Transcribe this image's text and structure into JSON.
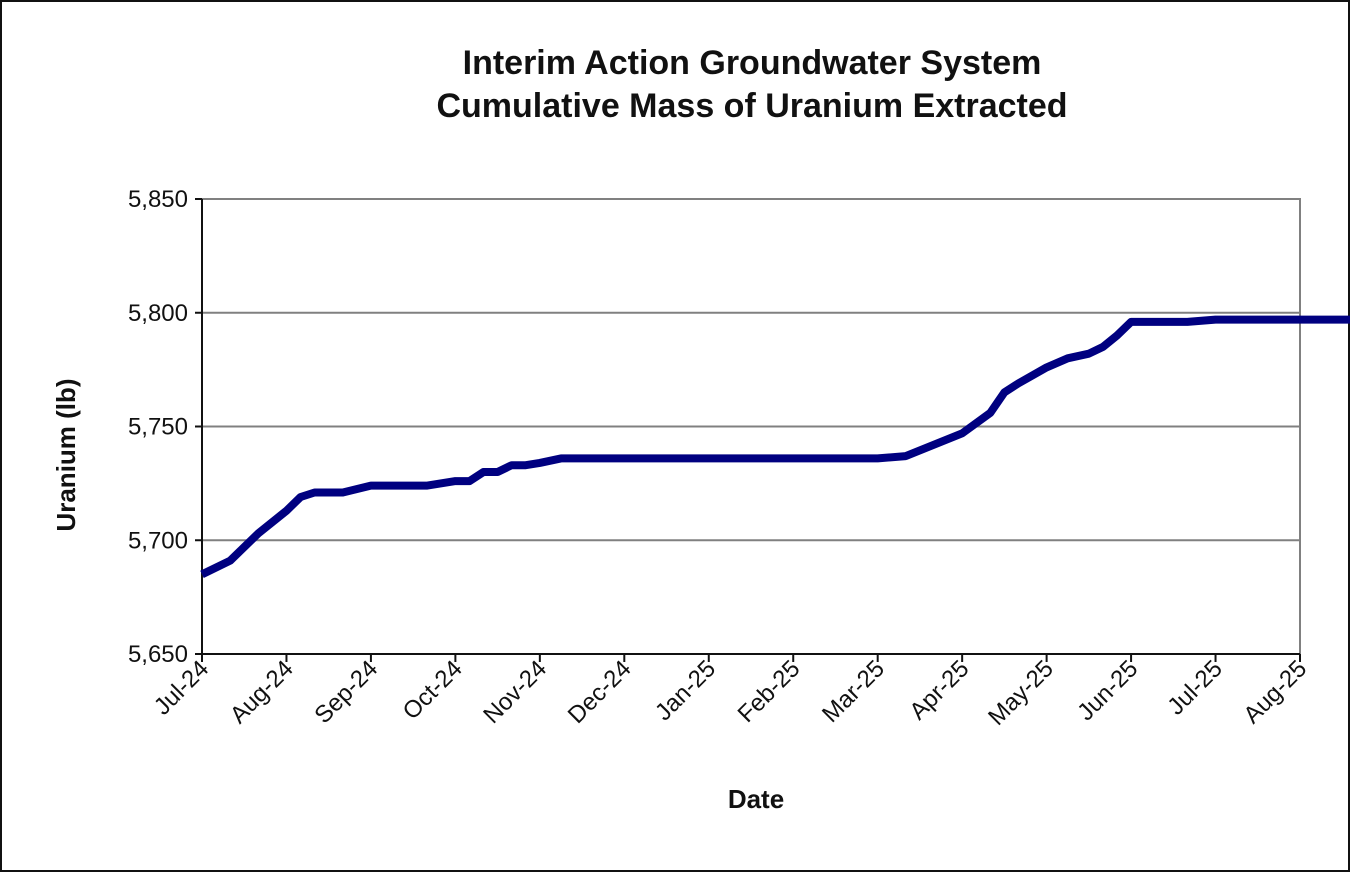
{
  "chart_data": {
    "type": "line",
    "title": "Interim  Action Groundwater System",
    "subtitle": "Cumulative Mass of Uranium Extracted",
    "xlabel": "Date",
    "ylabel": "Uranium (lb)",
    "categories": [
      "Jul-24",
      "Aug-24",
      "Sep-24",
      "Oct-24",
      "Nov-24",
      "Dec-24",
      "Jan-25",
      "Feb-25",
      "Mar-25",
      "Apr-25",
      "May-25",
      "Jun-25",
      "Jul-25",
      "Aug-25"
    ],
    "y_tick_labels": [
      "5,650",
      "5,700",
      "5,750",
      "5,800",
      "5,850"
    ],
    "ylim": [
      5650,
      5850
    ],
    "grid": "horizontal major gridlines",
    "legend": "none",
    "series_color": "#000080",
    "series": [
      {
        "x": [
          0,
          0.333,
          0.667,
          1,
          1.167,
          1.333,
          1.5,
          1.667,
          2,
          2.333,
          2.667,
          3,
          3.167,
          3.333,
          3.5,
          3.667,
          3.833,
          4,
          4.25,
          4.5,
          4.667,
          4.833,
          5,
          5.5,
          6,
          7,
          8,
          8.333,
          8.667,
          9,
          9.333,
          9.5,
          9.667,
          10,
          10.25,
          10.5,
          10.667,
          10.833,
          11,
          11.167,
          11.333,
          11.5,
          11.667,
          12,
          12.5,
          13,
          13.333,
          13.5,
          14
        ],
        "values": [
          5685,
          5691,
          5703,
          5713,
          5719,
          5721,
          5721,
          5721,
          5724,
          5724,
          5724,
          5726,
          5726,
          5730,
          5730,
          5733,
          5733,
          5734,
          5736,
          5736,
          5736,
          5736,
          5736,
          5736,
          5736,
          5736,
          5736,
          5737,
          5742,
          5747,
          5756,
          5765,
          5769,
          5776,
          5780,
          5782,
          5785,
          5790,
          5796,
          5796,
          5796,
          5796,
          5796,
          5797,
          5797,
          5797,
          5797,
          5797,
          5797
        ]
      }
    ]
  }
}
